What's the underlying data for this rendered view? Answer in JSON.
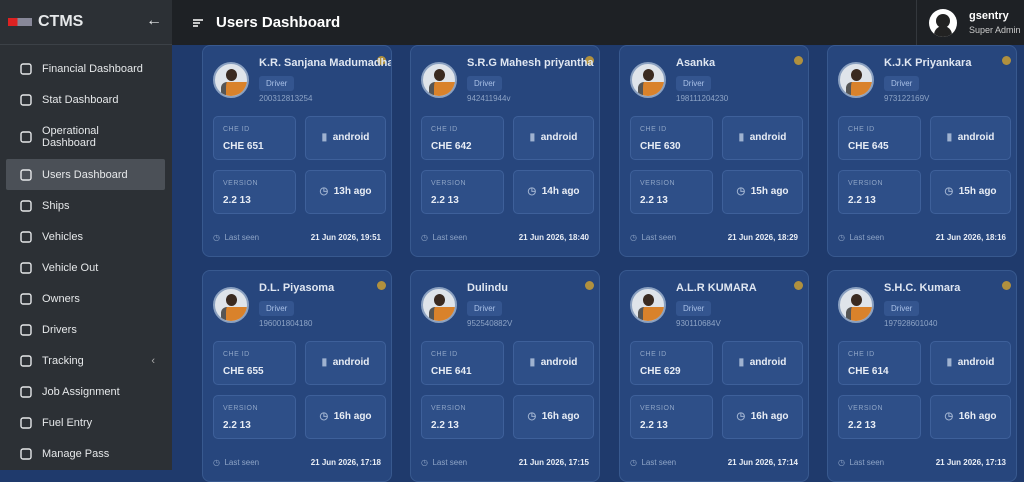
{
  "sidebar": {
    "brand": "CTMS",
    "menu": [
      "Financial Dashboard",
      "Stat Dashboard",
      "Operational Dashboard",
      "Users Dashboard",
      "Ships",
      "Vehicles",
      "Vehicle Out",
      "Owners",
      "Drivers",
      "Tracking",
      "Job Assignment",
      "Fuel Entry",
      "Manage Pass"
    ]
  },
  "header": {
    "title": "Users Dashboard",
    "user": "gsentry",
    "role": "Super Admin"
  },
  "labels": {
    "che_id": "CHE ID",
    "version": "VERSION",
    "last_seen": "Last seen"
  },
  "cards": [
    {
      "name": "K.R. Sanjana Madumadhav",
      "role": "Driver",
      "nic": "200312813254",
      "che": "CHE 651",
      "platform": "android",
      "version": "2.2 13",
      "ago": "13h ago",
      "date": "21 Jun 2026, 19:51"
    },
    {
      "name": "S.R.G Mahesh priyantha",
      "role": "Driver",
      "nic": "942411944v",
      "che": "CHE 642",
      "platform": "android",
      "version": "2.2 13",
      "ago": "14h ago",
      "date": "21 Jun 2026, 18:40"
    },
    {
      "name": "Asanka",
      "role": "Driver",
      "nic": "198111204230",
      "che": "CHE 630",
      "platform": "android",
      "version": "2.2 13",
      "ago": "15h ago",
      "date": "21 Jun 2026, 18:29"
    },
    {
      "name": "K.J.K Priyankara",
      "role": "Driver",
      "nic": "973122169V",
      "che": "CHE 645",
      "platform": "android",
      "version": "2.2 13",
      "ago": "15h ago",
      "date": "21 Jun 2026, 18:16"
    },
    {
      "name": "D.L. Piyasoma",
      "role": "Driver",
      "nic": "196001804180",
      "che": "CHE 655",
      "platform": "android",
      "version": "2.2 13",
      "ago": "16h ago",
      "date": "21 Jun 2026, 17:18"
    },
    {
      "name": "Dulindu",
      "role": "Driver",
      "nic": "952540882V",
      "che": "CHE 641",
      "platform": "android",
      "version": "2.2 13",
      "ago": "16h ago",
      "date": "21 Jun 2026, 17:15"
    },
    {
      "name": "A.L.R KUMARA",
      "role": "Driver",
      "nic": "930110684V",
      "che": "CHE 629",
      "platform": "android",
      "version": "2.2 13",
      "ago": "16h ago",
      "date": "21 Jun 2026, 17:14"
    },
    {
      "name": "S.H.C. Kumara",
      "role": "Driver",
      "nic": "197928601040",
      "che": "CHE 614",
      "platform": "android",
      "version": "2.2 13",
      "ago": "16h ago",
      "date": "21 Jun 2026, 17:13"
    }
  ]
}
